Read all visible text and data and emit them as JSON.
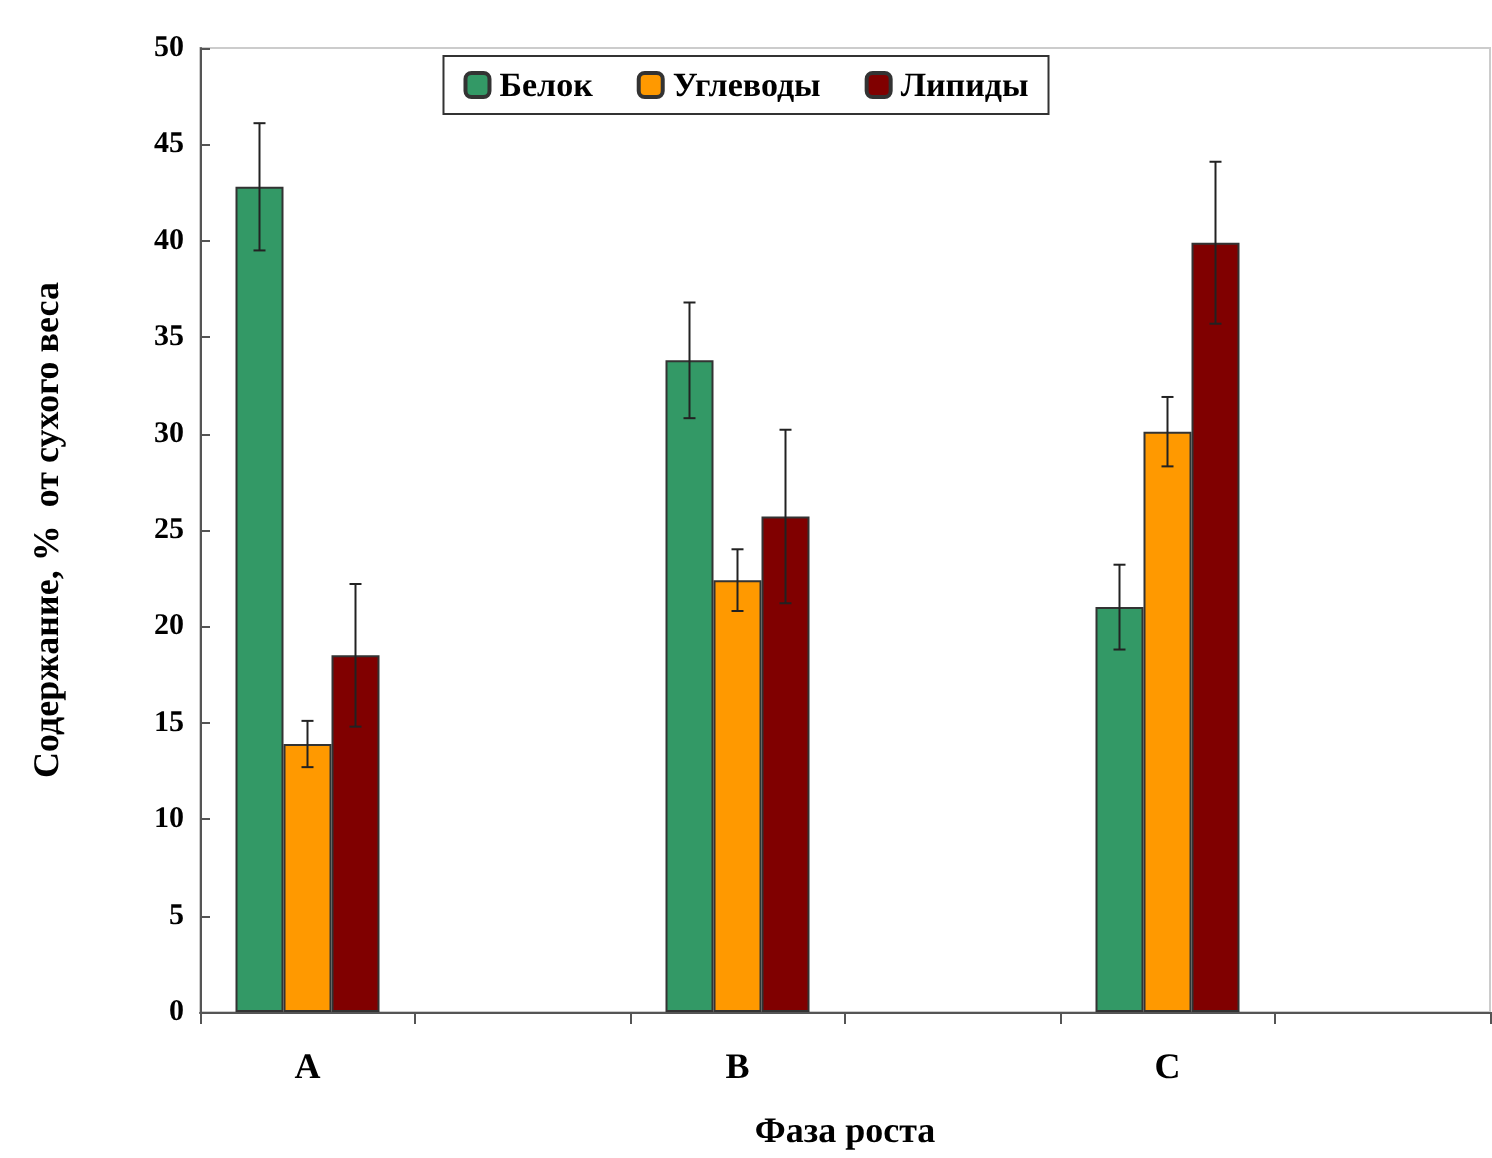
{
  "chart_data": {
    "type": "bar",
    "xlabel": "Фаза роста",
    "ylabel": "Содержание, %  от сухого веса",
    "categories": [
      "A",
      null,
      "B",
      null,
      "C",
      null
    ],
    "series": [
      {
        "name": "Белок",
        "color": "#339966",
        "values": [
          42.8,
          null,
          33.8,
          null,
          21.0,
          null
        ],
        "errors": [
          3.3,
          null,
          3.0,
          null,
          2.2,
          null
        ]
      },
      {
        "name": "Углеводы",
        "color": "#ff9900",
        "values": [
          13.9,
          null,
          22.4,
          null,
          30.1,
          null
        ],
        "errors": [
          1.2,
          null,
          1.6,
          null,
          1.8,
          null
        ]
      },
      {
        "name": "Липиды",
        "color": "#800000",
        "values": [
          18.5,
          null,
          25.7,
          null,
          39.9,
          null
        ],
        "errors": [
          3.7,
          null,
          4.5,
          null,
          4.2,
          null
        ]
      }
    ],
    "ylim": [
      0,
      50
    ],
    "yticks": [
      0,
      5,
      10,
      15,
      20,
      25,
      30,
      35,
      40,
      45,
      50
    ],
    "grid": false,
    "legend": "top"
  }
}
